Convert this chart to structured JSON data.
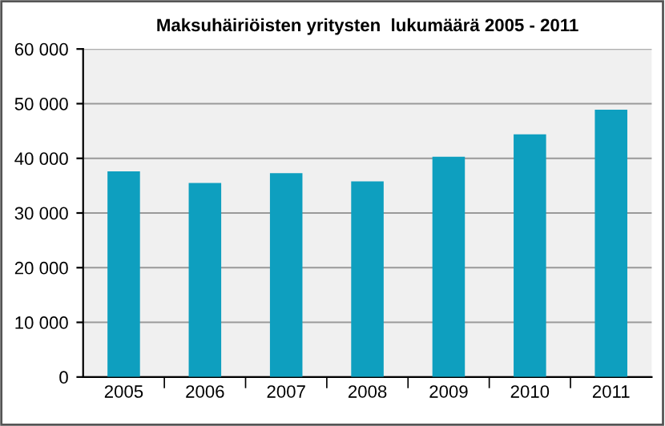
{
  "chart_data": {
    "type": "bar",
    "title": "Maksuhäiriöisten yritysten  lukumäärä 2005 - 2011",
    "categories": [
      "2005",
      "2006",
      "2007",
      "2008",
      "2009",
      "2010",
      "2011"
    ],
    "values": [
      37600,
      35500,
      37300,
      35800,
      40300,
      44400,
      48900
    ],
    "color": "#0e9fbf",
    "ylim": [
      0,
      60000
    ],
    "yticks": [
      0,
      {
        "value": 10000,
        "label": "10 000"
      },
      {
        "value": 20000,
        "label": "20 000"
      },
      {
        "value": 30000,
        "label": "30 000"
      },
      {
        "value": 40000,
        "label": "40 000"
      },
      {
        "value": 50000,
        "label": "50 000"
      },
      {
        "value": 60000,
        "label": "60 000"
      }
    ],
    "grid": "y",
    "legend": false
  }
}
